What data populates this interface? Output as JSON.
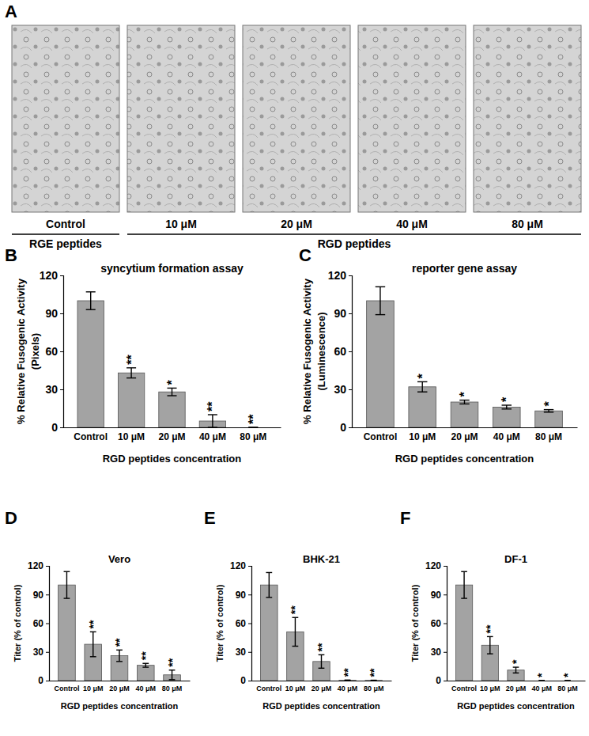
{
  "panel_a": {
    "panel_label": "A",
    "groups": [
      {
        "label": "RGE peptides",
        "images": [
          "Control"
        ]
      },
      {
        "label": "RGD peptides",
        "images": [
          "10 μM",
          "20 μM",
          "40 μM",
          "80 μM"
        ]
      }
    ]
  },
  "chart_data": [
    {
      "type": "bar",
      "panel_label": "B",
      "title": "syncytium formation assay",
      "y_label": [
        "% Relative Fusogenic Activity",
        "(Pixels)"
      ],
      "x_label": "RGD peptides concentration",
      "categories": [
        "Control",
        "10 μM",
        "20 μM",
        "40 μM",
        "80 μM"
      ],
      "values": [
        100,
        43,
        28,
        5,
        0
      ],
      "errors": [
        7,
        4,
        3,
        5,
        0
      ],
      "significance": [
        null,
        "**",
        "*",
        "**",
        "**"
      ],
      "color": "#a3a3a3",
      "ylim": [
        0,
        120
      ],
      "yticks": [
        0,
        30,
        60,
        90,
        120
      ],
      "grid": false
    },
    {
      "type": "bar",
      "panel_label": "C",
      "title": "reporter gene assay",
      "y_label": [
        "% Relative Fusogenic Activity",
        "(Luminescence)"
      ],
      "x_label": "RGD peptides concentration",
      "categories": [
        "Control",
        "10 μM",
        "20 μM",
        "40 μM",
        "80 μM"
      ],
      "values": [
        100,
        32,
        20,
        16,
        13
      ],
      "errors": [
        11,
        4,
        1.5,
        1.5,
        1
      ],
      "significance": [
        null,
        "*",
        "*",
        "*",
        "*"
      ],
      "color": "#a3a3a3",
      "ylim": [
        0,
        120
      ],
      "yticks": [
        0,
        30,
        60,
        90,
        120
      ],
      "grid": false
    },
    {
      "type": "bar",
      "panel_label": "D",
      "title": "Vero",
      "y_label": [
        "Titer (% of control)"
      ],
      "x_label": "RGD peptides concentration",
      "categories": [
        "Control",
        "10 μM",
        "20 μM",
        "40 μM",
        "80 μM"
      ],
      "values": [
        100,
        38,
        26,
        16,
        6
      ],
      "errors": [
        14,
        13,
        6,
        2,
        5
      ],
      "significance": [
        null,
        "**",
        "**",
        "**",
        "**"
      ],
      "color": "#a3a3a3",
      "ylim": [
        0,
        120
      ],
      "yticks": [
        0,
        30,
        60,
        90,
        120
      ],
      "grid": false
    },
    {
      "type": "bar",
      "panel_label": "E",
      "title": "BHK-21",
      "y_label": [
        "Titer (% of control)"
      ],
      "x_label": "RGD peptides concentration",
      "categories": [
        "Control",
        "10 μM",
        "20 μM",
        "40 μM",
        "80 μM"
      ],
      "values": [
        100,
        51,
        20,
        0.3,
        0.2
      ],
      "errors": [
        13,
        15,
        7,
        0.3,
        0.2
      ],
      "significance": [
        null,
        "**",
        "**",
        "**",
        "**"
      ],
      "color": "#a3a3a3",
      "ylim": [
        0,
        120
      ],
      "yticks": [
        0,
        30,
        60,
        90,
        120
      ],
      "grid": false
    },
    {
      "type": "bar",
      "panel_label": "F",
      "title": "DF-1",
      "y_label": [
        "Titer (% of control)"
      ],
      "x_label": "RGD peptides concentration",
      "categories": [
        "Control",
        "10 μM",
        "20 μM",
        "40 μM",
        "80 μM"
      ],
      "values": [
        100,
        37,
        11,
        0,
        0
      ],
      "errors": [
        14,
        9,
        3,
        0,
        0
      ],
      "significance": [
        null,
        "**",
        "*",
        "*",
        "*"
      ],
      "color": "#a3a3a3",
      "ylim": [
        0,
        120
      ],
      "yticks": [
        0,
        30,
        60,
        90,
        120
      ],
      "grid": false
    }
  ]
}
